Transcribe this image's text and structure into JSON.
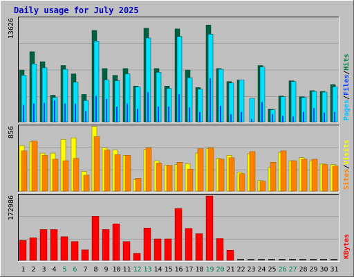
{
  "chart_data": [
    {
      "type": "bar",
      "title": "Daily usage for July 2025",
      "panel": "hits-files-pages",
      "ylabel_parts": [
        {
          "text": "Pages",
          "color": "#00c0ff"
        },
        {
          "text": "/",
          "color": "#000000"
        },
        {
          "text": "Files",
          "color": "#0040ff"
        },
        {
          "text": "/",
          "color": "#000000"
        },
        {
          "text": "Hits",
          "color": "#008040"
        }
      ],
      "ymax_label": "13626",
      "ylim": [
        0,
        13626
      ],
      "categories": [
        "1",
        "2",
        "3",
        "4",
        "5",
        "6",
        "7",
        "8",
        "9",
        "10",
        "11",
        "12",
        "13",
        "14",
        "15",
        "16",
        "17",
        "18",
        "19",
        "20",
        "21",
        "22",
        "23",
        "24",
        "25",
        "26",
        "27",
        "28",
        "29",
        "30",
        "31"
      ],
      "series": [
        {
          "name": "Hits",
          "color": "#006040",
          "values": [
            6800,
            9200,
            7900,
            3500,
            7400,
            6300,
            3600,
            12000,
            7000,
            6100,
            7000,
            4700,
            12300,
            7000,
            4700,
            12200,
            6800,
            4500,
            12700,
            7000,
            5300,
            5500,
            0,
            7400,
            1700,
            3400,
            5400,
            3300,
            4100,
            4000,
            4900
          ]
        },
        {
          "name": "Files",
          "color": "#00e0ff",
          "values": [
            6100,
            7600,
            7100,
            3200,
            6900,
            5200,
            2800,
            10600,
            5500,
            5400,
            6300,
            4600,
            11000,
            6500,
            4400,
            11200,
            5800,
            4300,
            11500,
            6900,
            5100,
            5500,
            3100,
            7200,
            1600,
            3300,
            5300,
            3200,
            4000,
            3900,
            4600
          ]
        },
        {
          "name": "Pages",
          "color": "#0040ff",
          "values": [
            2200,
            2400,
            2500,
            2800,
            2400,
            2400,
            1400,
            3400,
            3000,
            2000,
            2400,
            1700,
            3900,
            2000,
            2000,
            3600,
            1900,
            1300,
            5700,
            2100,
            1000,
            1300,
            400,
            2600,
            1000,
            800,
            700,
            1300,
            1800,
            1200,
            1300
          ]
        }
      ]
    },
    {
      "type": "bar",
      "panel": "visits-sites",
      "ylabel_parts": [
        {
          "text": "Sites",
          "color": "#ff8000"
        },
        {
          "text": "/",
          "color": "#000000"
        },
        {
          "text": "Visits",
          "color": "#ffff00"
        }
      ],
      "ymax_label": "856",
      "ylim": [
        0,
        856
      ],
      "categories": [
        "1",
        "2",
        "3",
        "4",
        "5",
        "6",
        "7",
        "8",
        "9",
        "10",
        "11",
        "12",
        "13",
        "14",
        "15",
        "16",
        "17",
        "18",
        "19",
        "20",
        "21",
        "22",
        "23",
        "24",
        "25",
        "26",
        "27",
        "28",
        "29",
        "30",
        "31"
      ],
      "series": [
        {
          "name": "Visits",
          "color": "#ffff00",
          "values": [
            600,
            650,
            500,
            500,
            680,
            700,
            260,
            850,
            570,
            540,
            470,
            150,
            550,
            400,
            340,
            350,
            360,
            500,
            560,
            430,
            470,
            250,
            490,
            140,
            310,
            510,
            400,
            440,
            400,
            360,
            350
          ]
        },
        {
          "name": "Sites",
          "color": "#ff8000",
          "values": [
            530,
            660,
            470,
            420,
            400,
            430,
            210,
            720,
            540,
            480,
            470,
            170,
            570,
            370,
            340,
            380,
            290,
            560,
            570,
            420,
            440,
            230,
            520,
            130,
            380,
            530,
            400,
            420,
            420,
            350,
            330
          ]
        }
      ]
    },
    {
      "type": "bar",
      "panel": "kbytes",
      "ylabel_parts": [
        {
          "text": "KBytes",
          "color": "#ff0000"
        }
      ],
      "ymax_label": "172986",
      "ylim": [
        0,
        172986
      ],
      "categories": [
        "1",
        "2",
        "3",
        "4",
        "5",
        "6",
        "7",
        "8",
        "9",
        "10",
        "11",
        "12",
        "13",
        "14",
        "15",
        "16",
        "17",
        "18",
        "19",
        "20",
        "21",
        "22",
        "23",
        "24",
        "25",
        "26",
        "27",
        "28",
        "29",
        "30",
        "31"
      ],
      "series": [
        {
          "name": "KBytes",
          "color": "#ff0000",
          "values": [
            53000,
            60000,
            82000,
            82000,
            63000,
            50000,
            28000,
            117000,
            82000,
            97000,
            50000,
            19000,
            86000,
            57000,
            57000,
            138000,
            85000,
            71000,
            171000,
            58000,
            27000,
            0,
            0,
            0,
            0,
            0,
            0,
            0,
            0,
            0,
            0
          ]
        }
      ]
    }
  ],
  "x_axis": {
    "labels": [
      "1",
      "2",
      "3",
      "4",
      "5",
      "6",
      "7",
      "8",
      "9",
      "10",
      "11",
      "12",
      "13",
      "14",
      "15",
      "16",
      "17",
      "18",
      "19",
      "20",
      "21",
      "22",
      "23",
      "24",
      "25",
      "26",
      "27",
      "28",
      "29",
      "30",
      "31"
    ],
    "weekend_days": [
      "5",
      "6",
      "12",
      "13",
      "19",
      "20",
      "26",
      "27"
    ],
    "weekday_color": "#000000",
    "weekend_color": "#00805c"
  },
  "colors": {
    "background": "#c0c0c0",
    "title": "#0000c0",
    "grid": "#a0a0a0"
  }
}
